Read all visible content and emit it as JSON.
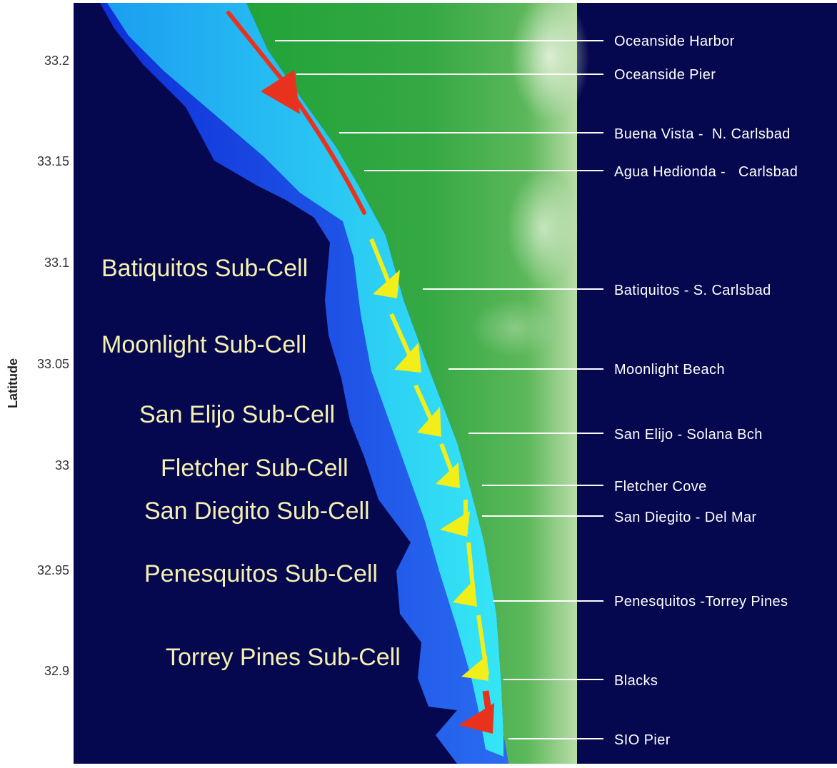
{
  "axis": {
    "ylabel": "Latitude",
    "ticks": [
      "33.2",
      "33.15",
      "33.1",
      "33.05",
      "33",
      "32.95",
      "32.9"
    ]
  },
  "places": [
    "Oceanside Harbor",
    "Oceanside Pier",
    "Buena Vista -  N. Carlsbad",
    "Agua Hedionda -   Carlsbad",
    "Batiquitos - S. Carlsbad",
    "Moonlight Beach",
    "San Elijo - Solana Bch",
    "Fletcher Cove",
    "San Diegito - Del Mar",
    "Penesquitos -Torrey Pines",
    "Blacks",
    "SIO Pier"
  ],
  "subcells": [
    "Batiquitos Sub-Cell",
    "Moonlight Sub-Cell",
    "San Elijo Sub-Cell",
    "Fletcher Sub-Cell",
    "San Diegito Sub-Cell",
    "Penesquitos Sub-Cell",
    "Torrey Pines Sub-Cell"
  ],
  "colors": {
    "deep_ocean": "#05084f",
    "shelf_blue": "#1a44e6",
    "shallow_cyan": "#22d8ee",
    "land_green": "#2f9f3c",
    "highland_light": "#cfe8c0",
    "transport_north": "#e8321e",
    "transport_south": "#f2ee1a",
    "label_text": "#ffffff",
    "subcell_text": "#f6f0b0"
  },
  "icons": {
    "transport_arrow": "arrow-icon"
  }
}
